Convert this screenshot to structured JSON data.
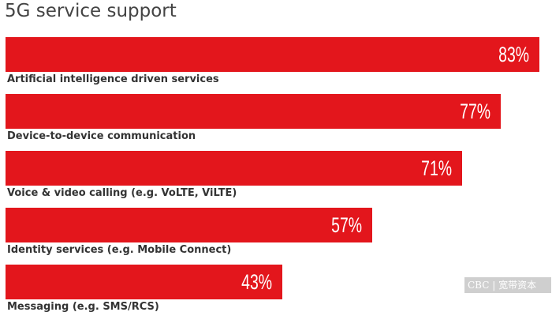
{
  "chart_data": {
    "type": "bar",
    "orientation": "horizontal",
    "title": "5G service support",
    "categories": [
      "Artificial intelligence driven services",
      "Device-to-device communication",
      "Voice & video calling (e.g. VoLTE, ViLTE)",
      "Identity services (e.g. Mobile Connect)",
      "Messaging (e.g. SMS/RCS)"
    ],
    "values": [
      83,
      77,
      71,
      57,
      43
    ],
    "value_labels": [
      "83%",
      "77%",
      "71%",
      "57%",
      "43%"
    ],
    "unit": "%",
    "xlim": [
      0,
      83
    ],
    "grid": false,
    "legend": "none",
    "bar_color": "#e3161c"
  },
  "watermark": "CBC | 宽带资本"
}
